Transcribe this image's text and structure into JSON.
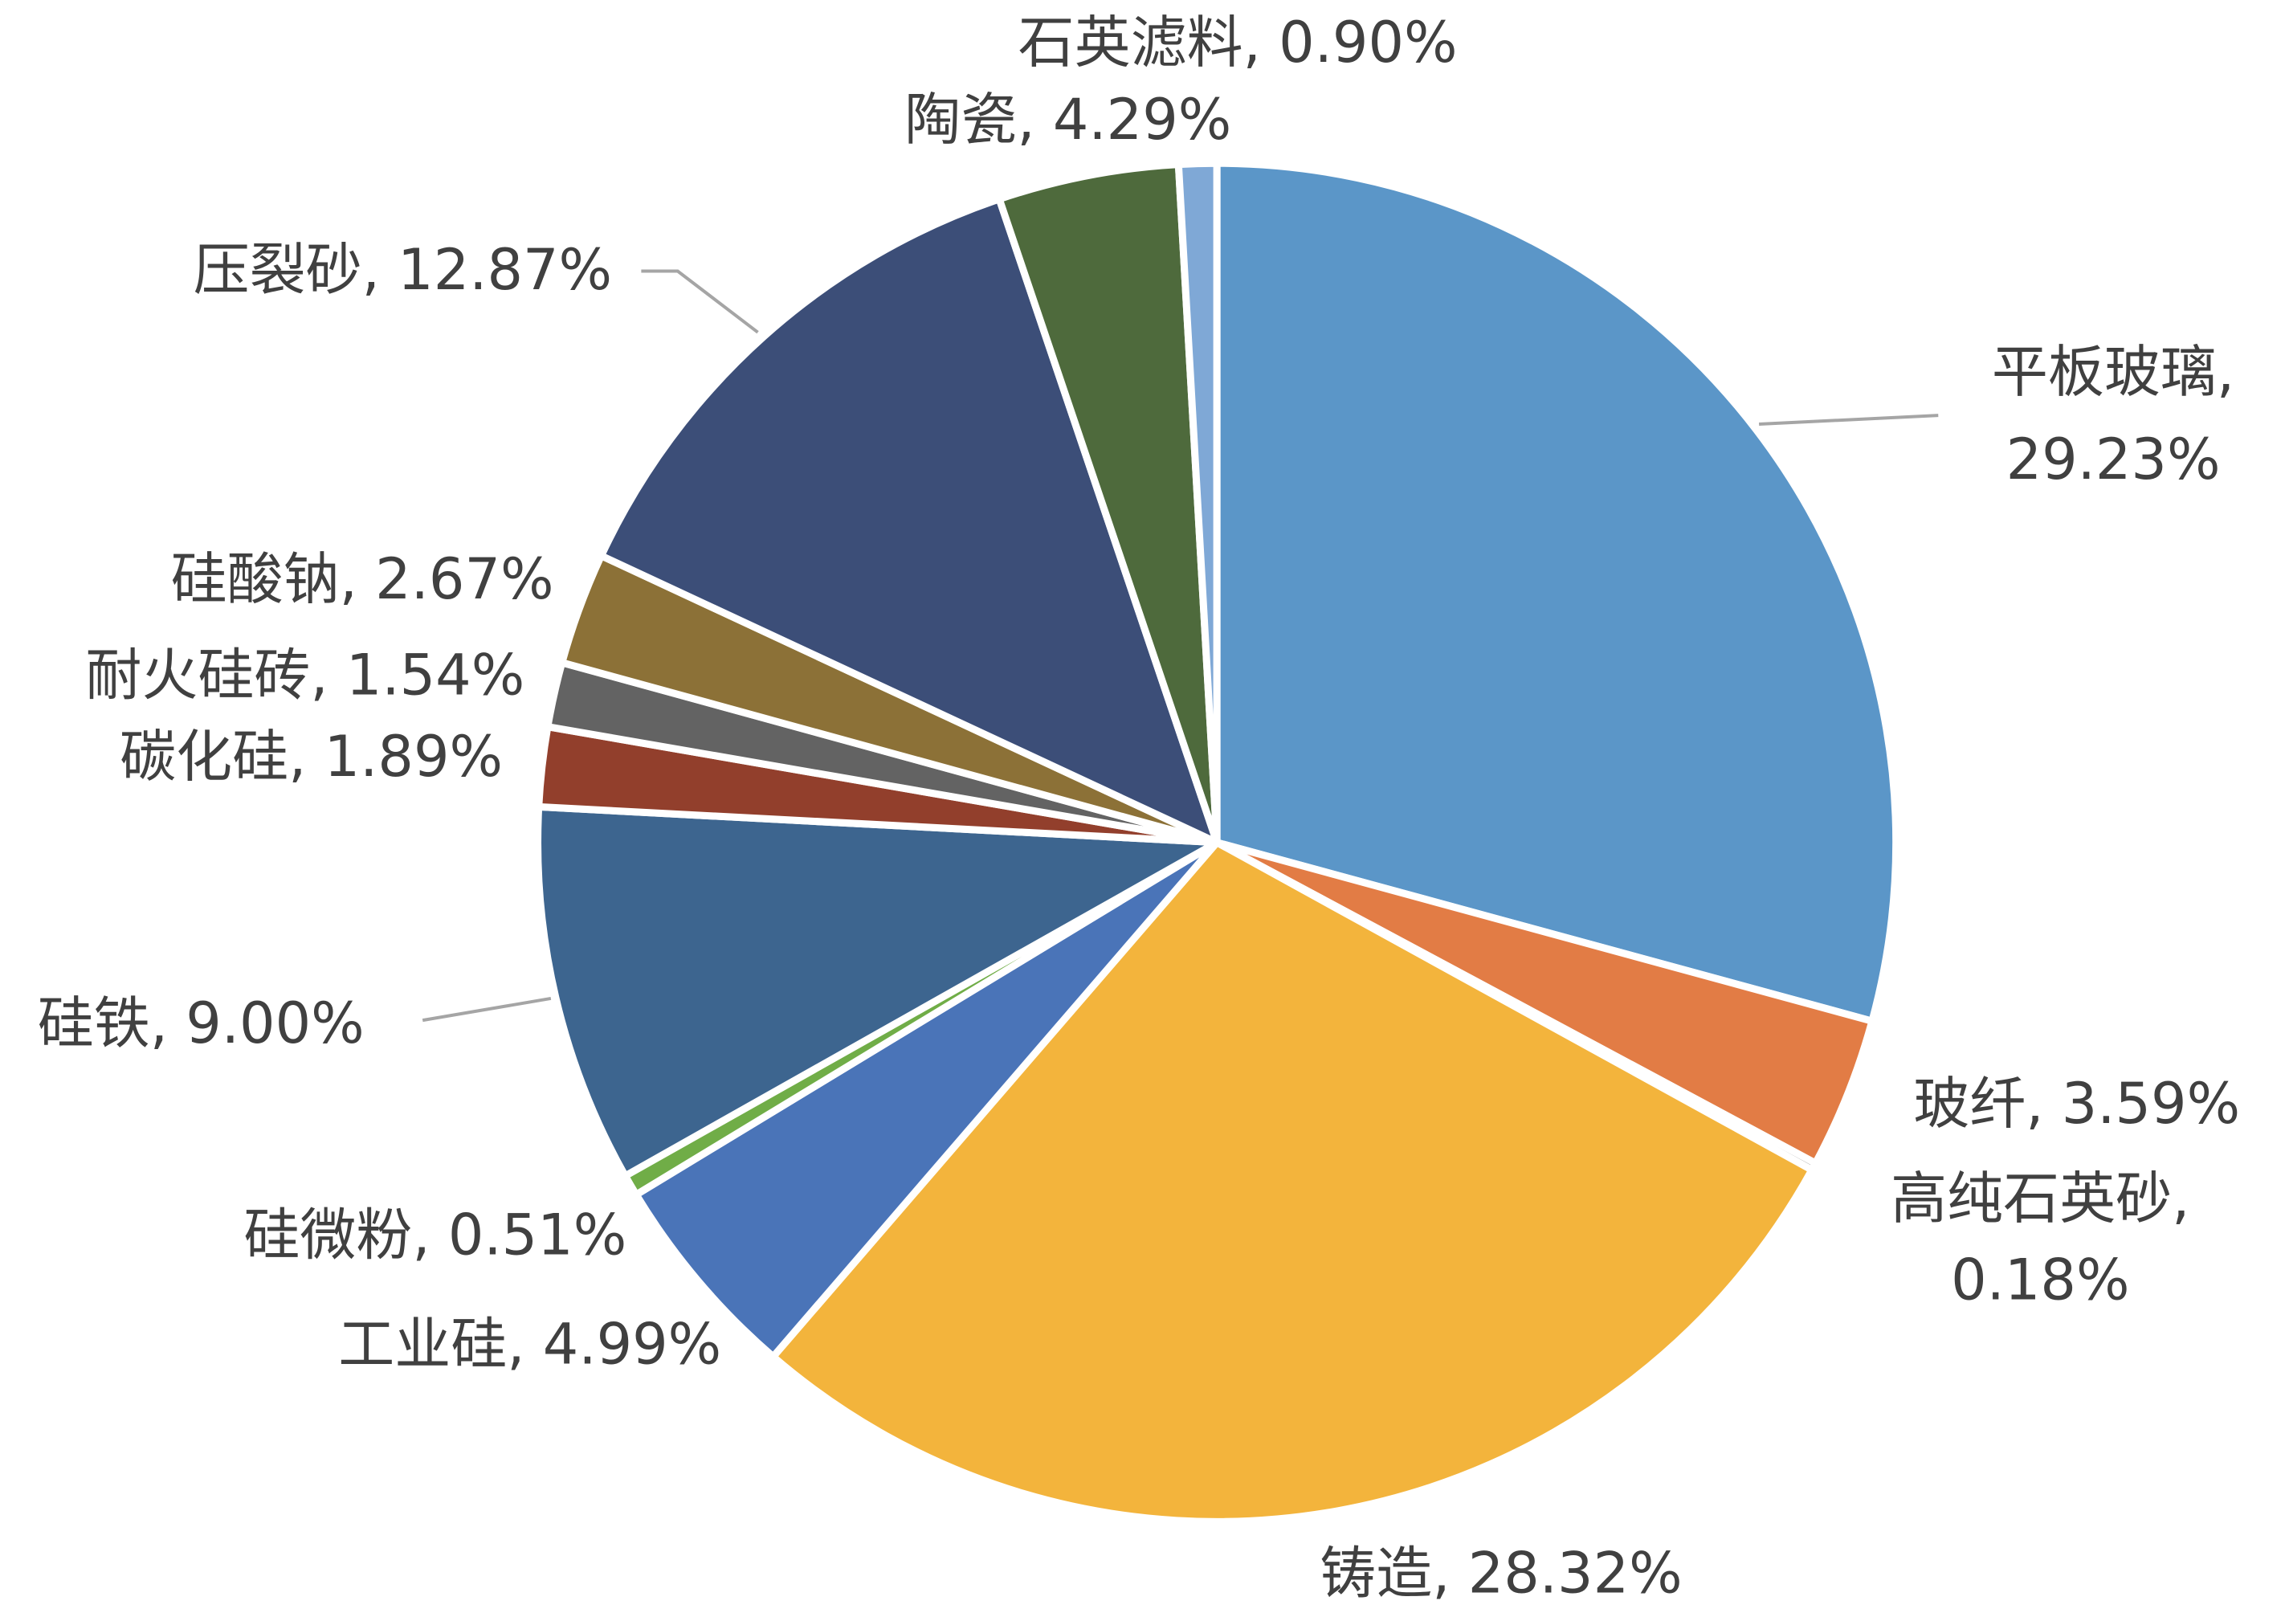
{
  "chart_data": {
    "type": "pie",
    "categories": [
      "平板玻璃",
      "玻纤",
      "高纯石英砂",
      "铸造",
      "工业硅",
      "硅微粉",
      "硅铁",
      "碳化硅",
      "耐火硅砖",
      "硅酸钠",
      "压裂砂",
      "陶瓷",
      "石英滤料"
    ],
    "values": [
      29.23,
      3.59,
      0.18,
      28.32,
      4.99,
      0.51,
      9.0,
      1.89,
      1.54,
      2.67,
      12.87,
      4.29,
      0.9
    ],
    "labels": [
      [
        "平板玻璃,",
        "29.23%"
      ],
      [
        "玻纤, 3.59%"
      ],
      [
        "高纯石英砂,",
        "0.18%"
      ],
      [
        "铸造, 28.32%"
      ],
      [
        "工业硅, 4.99%"
      ],
      [
        "硅微粉, 0.51%"
      ],
      [
        "硅铁, 9.00%"
      ],
      [
        "碳化硅, 1.89%"
      ],
      [
        "耐火硅砖, 1.54%"
      ],
      [
        "硅酸钠, 2.67%"
      ],
      [
        "压裂砂, 12.87%"
      ],
      [
        "陶瓷, 4.29%"
      ],
      [
        "石英滤料, 0.90%"
      ]
    ],
    "colors": [
      "#5b96c8",
      "#e27c45",
      "#a5a5a5",
      "#f3b43c",
      "#4a74b8",
      "#70ad47",
      "#3d658f",
      "#923f2c",
      "#636363",
      "#8c7137",
      "#3c4e78",
      "#4e6a3c",
      "#7fa8d6"
    ]
  }
}
